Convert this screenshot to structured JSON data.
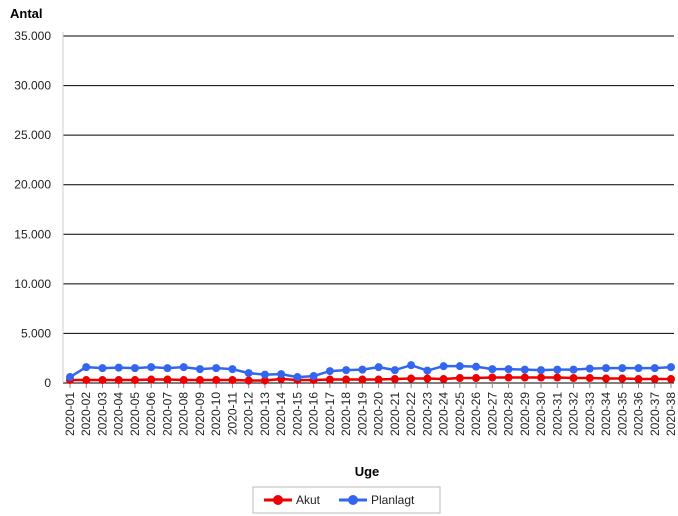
{
  "chart_data": {
    "type": "line",
    "ylabel": "Antal",
    "xlabel": "Uge",
    "ylim": [
      0,
      35000
    ],
    "yticks": [
      0,
      5000,
      10000,
      15000,
      20000,
      25000,
      30000,
      35000
    ],
    "ytick_labels": [
      "0",
      "5.000",
      "10.000",
      "15.000",
      "20.000",
      "25.000",
      "30.000",
      "35.000"
    ],
    "grid": "horizontal",
    "legend_position": "bottom",
    "categories": [
      "2020-01",
      "2020-02",
      "2020-03",
      "2020-04",
      "2020-05",
      "2020-06",
      "2020-07",
      "2020-08",
      "2020-09",
      "2020-10",
      "2020-11",
      "2020-12",
      "2020-13",
      "2020-14",
      "2020-15",
      "2020-16",
      "2020-17",
      "2020-18",
      "2020-19",
      "2020-20",
      "2020-21",
      "2020-22",
      "2020-23",
      "2020-24",
      "2020-25",
      "2020-26",
      "2020-27",
      "2020-28",
      "2020-29",
      "2020-30",
      "2020-31",
      "2020-32",
      "2020-33",
      "2020-34",
      "2020-35",
      "2020-36",
      "2020-37",
      "2020-38"
    ],
    "series": [
      {
        "name": "Akut",
        "color": "#ee0000",
        "values": [
          300,
          300,
          300,
          300,
          300,
          350,
          350,
          300,
          300,
          300,
          300,
          250,
          250,
          400,
          300,
          300,
          350,
          350,
          350,
          350,
          400,
          450,
          450,
          400,
          500,
          500,
          550,
          550,
          550,
          550,
          550,
          500,
          500,
          450,
          450,
          400,
          400,
          400
        ]
      },
      {
        "name": "Planlagt",
        "color": "#3366ee",
        "values": [
          600,
          1600,
          1500,
          1550,
          1500,
          1600,
          1500,
          1600,
          1400,
          1500,
          1400,
          1000,
          850,
          900,
          600,
          700,
          1200,
          1300,
          1350,
          1600,
          1300,
          1800,
          1250,
          1700,
          1700,
          1650,
          1400,
          1400,
          1350,
          1300,
          1350,
          1350,
          1450,
          1500,
          1500,
          1500,
          1500,
          1600
        ]
      }
    ]
  }
}
